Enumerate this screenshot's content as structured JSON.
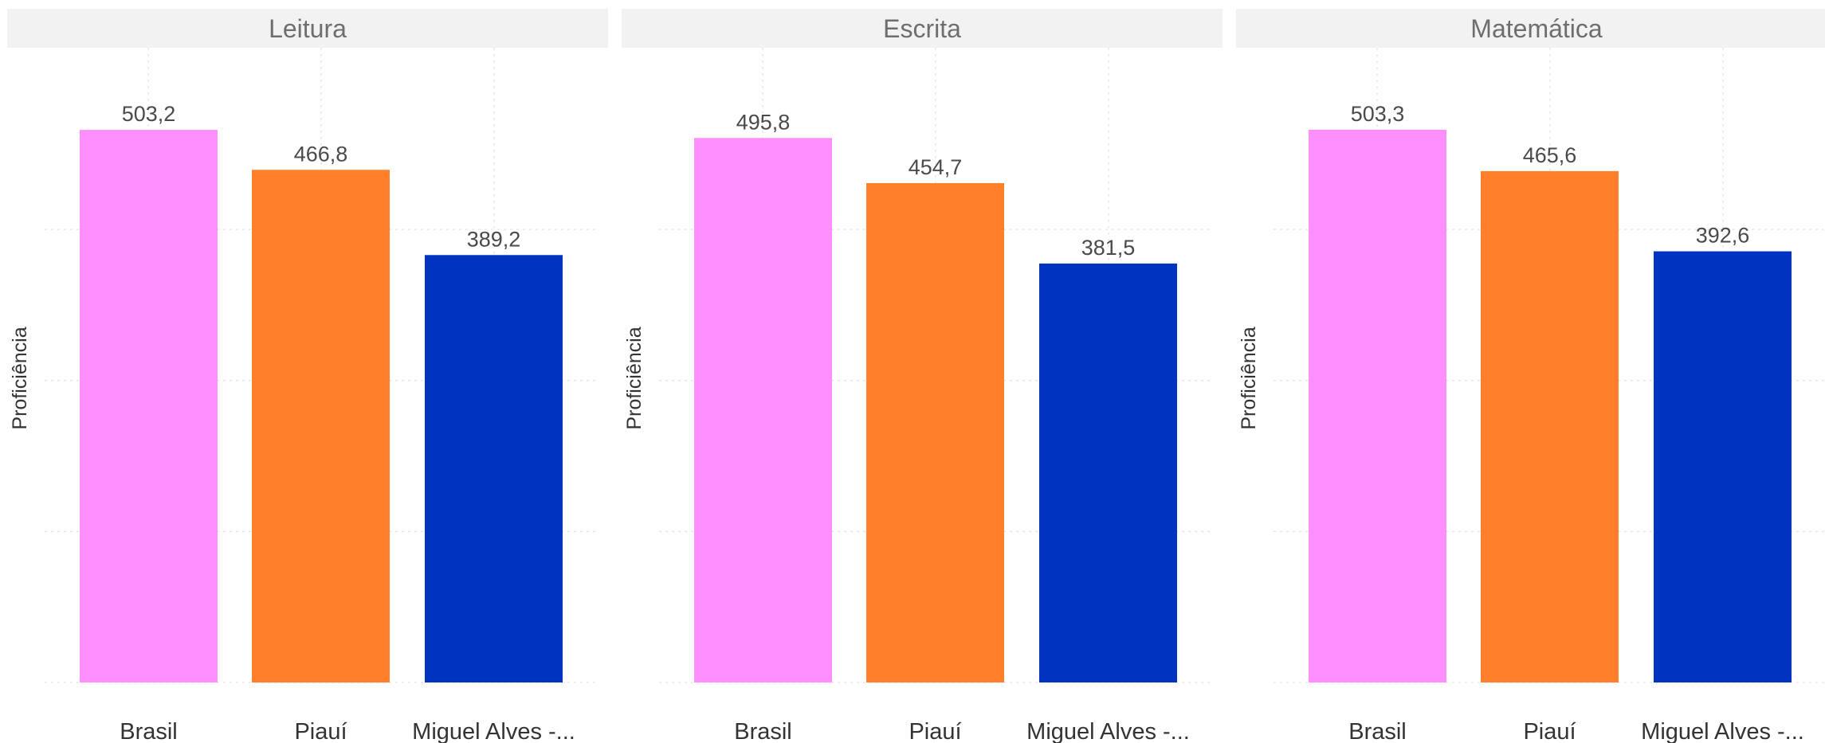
{
  "chart_data": {
    "type": "bar",
    "categories": [
      "Brasil",
      "Piauí",
      "Miguel Alves -..."
    ],
    "colors": {
      "Brasil": "#FF8FFF",
      "Piauí": "#FF7F2A",
      "Miguel Alves -...": "#0033C0"
    },
    "panels": [
      {
        "title": "Leitura",
        "ylabel": "Proficiência",
        "values": [
          503.2,
          466.8,
          389.2
        ],
        "labels": [
          "503,2",
          "466,8",
          "389,2"
        ]
      },
      {
        "title": "Escrita",
        "ylabel": "Proficiência",
        "values": [
          495.8,
          454.7,
          381.5
        ],
        "labels": [
          "495,8",
          "454,7",
          "381,5"
        ]
      },
      {
        "title": "Matemática",
        "ylabel": "Proficiência",
        "values": [
          503.3,
          465.6,
          392.6
        ],
        "labels": [
          "503,3",
          "465,6",
          "392,6"
        ]
      }
    ],
    "grid": true,
    "legend": "none"
  }
}
